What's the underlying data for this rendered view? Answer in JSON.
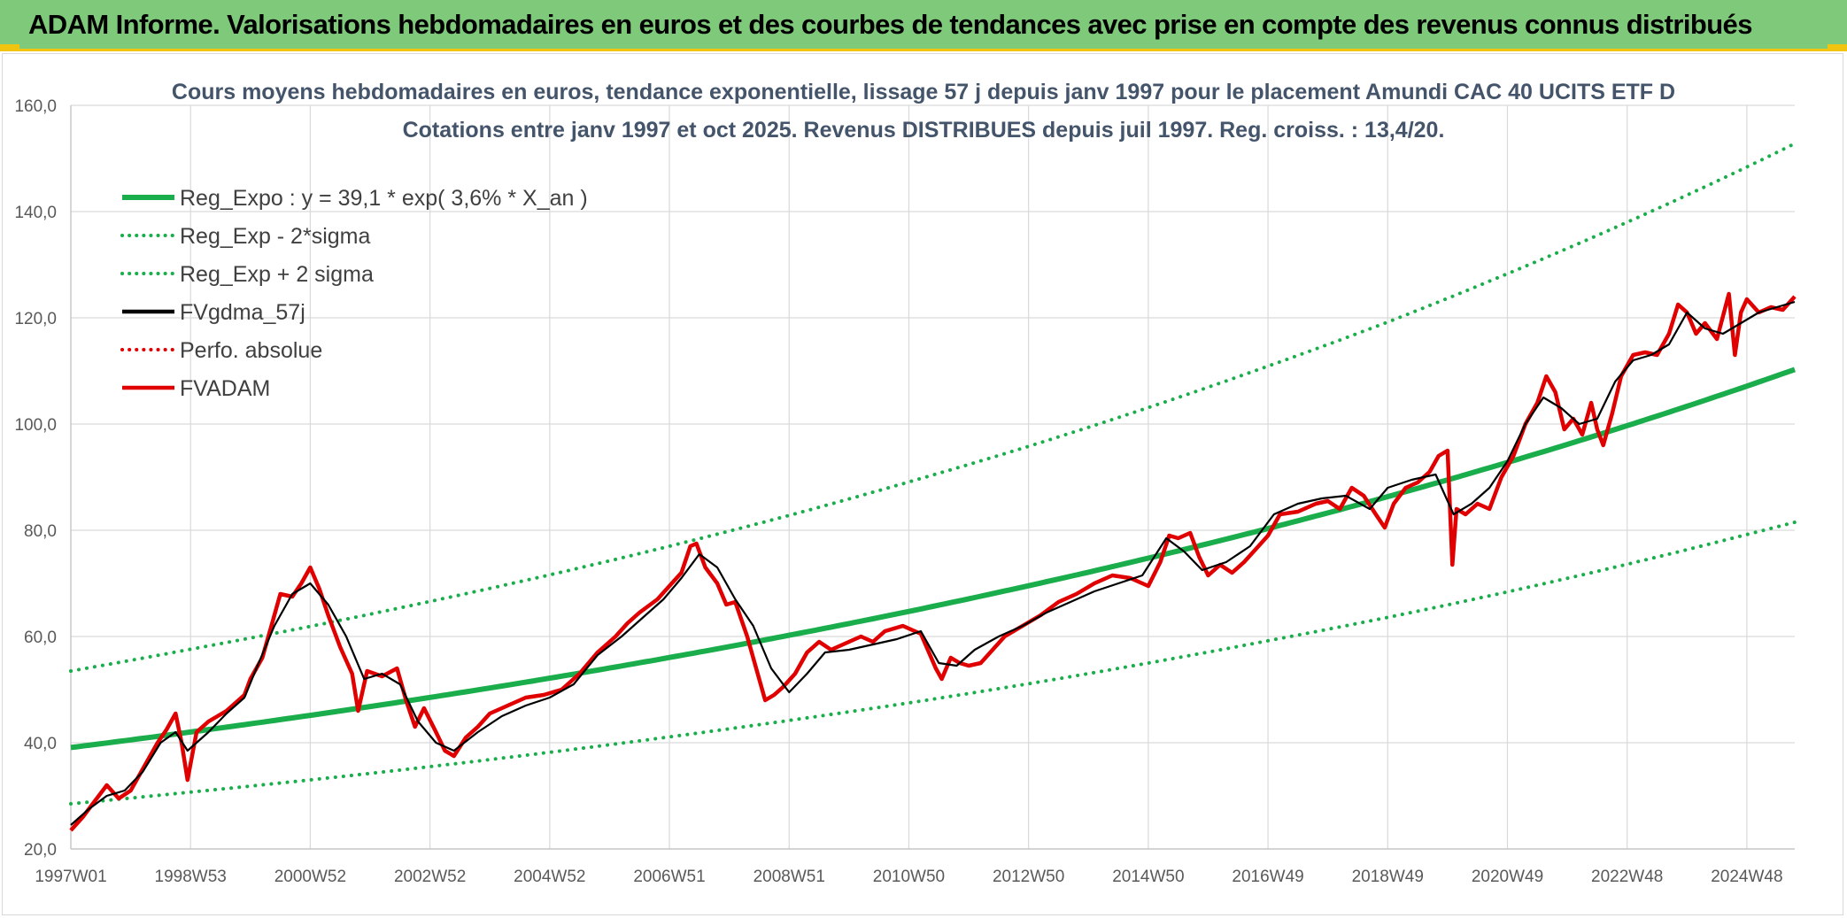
{
  "banner": {
    "title": "ADAM Informe. Valorisations hebdomadaires en euros et des courbes de tendances avec prise en compte des revenus connus distribués"
  },
  "colors": {
    "banner_bg": "#7fc97a",
    "accent_yellow": "#f1c40f",
    "trend_green": "#1aad4b",
    "smooth_black": "#000000",
    "price_red": "#e00000",
    "grid": "#d9d9d9"
  },
  "chart_data": {
    "type": "line",
    "title_line1": "Cours moyens hebdomadaires en euros, tendance exponentielle, lissage 57 j depuis janv 1997 pour le placement Amundi CAC 40 UCITS ETF D",
    "title_line2": "Cotations entre janv 1997 et oct 2025. Revenus DISTRIBUES depuis juil 1997. Reg. croiss. : 13,4/20.",
    "xlabel": "",
    "ylabel": "",
    "ylim": [
      20,
      160
    ],
    "xlim": [
      1997.0,
      2025.8
    ],
    "yticks": [
      "20,0",
      "40,0",
      "60,0",
      "80,0",
      "100,0",
      "120,0",
      "140,0",
      "160,0"
    ],
    "ytick_values": [
      20,
      40,
      60,
      80,
      100,
      120,
      140,
      160
    ],
    "xticks": [
      "1997W01",
      "1998W53",
      "2000W52",
      "2002W52",
      "2004W52",
      "2006W51",
      "2008W51",
      "2010W50",
      "2012W50",
      "2014W50",
      "2016W49",
      "2018W49",
      "2020W49",
      "2022W48",
      "2024W48"
    ],
    "xtick_values": [
      1997.0,
      1999.0,
      2001.0,
      2003.0,
      2005.0,
      2007.0,
      2009.0,
      2011.0,
      2013.0,
      2015.0,
      2017.0,
      2019.0,
      2021.0,
      2023.0,
      2025.0
    ],
    "grid": true,
    "legend_position": "top-left",
    "legend": [
      {
        "label": "Reg_Expo : y = 39,1 * exp( 3,6% *  X_an )",
        "style": "solid",
        "color": "#1aad4b"
      },
      {
        "label": "Reg_Exp - 2*sigma",
        "style": "dotted",
        "color": "#1aad4b"
      },
      {
        "label": "Reg_Exp + 2 sigma",
        "style": "dotted",
        "color": "#1aad4b"
      },
      {
        "label": "FVgdma_57j",
        "style": "solid",
        "color": "#000000"
      },
      {
        "label": "Perfo. absolue",
        "style": "dotted",
        "color": "#e00000"
      },
      {
        "label": "FVADAM",
        "style": "solid",
        "color": "#e00000"
      }
    ],
    "series": [
      {
        "name": "Reg_Expo",
        "formula": {
          "a": 39.1,
          "rate": 0.036,
          "x0": 1997.0
        },
        "x": [
          1997.0,
          1999.0,
          2001.0,
          2003.0,
          2005.0,
          2007.0,
          2009.0,
          2011.0,
          2013.0,
          2015.0,
          2017.0,
          2019.0,
          2021.0,
          2023.0,
          2025.0,
          2025.8
        ],
        "values": [
          39.1,
          42.0,
          45.3,
          48.7,
          52.4,
          56.3,
          60.6,
          65.1,
          70.1,
          75.4,
          81.1,
          87.2,
          93.8,
          100.9,
          108.5,
          111.7
        ]
      },
      {
        "name": "Reg_Exp - 2*sigma",
        "x": [
          1997.0,
          1999.0,
          2001.0,
          2003.0,
          2005.0,
          2007.0,
          2009.0,
          2011.0,
          2013.0,
          2015.0,
          2017.0,
          2019.0,
          2021.0,
          2023.0,
          2025.0,
          2025.8
        ],
        "values": [
          28.5,
          30.7,
          33.0,
          35.5,
          38.2,
          41.1,
          44.2,
          47.5,
          51.1,
          55.0,
          59.2,
          63.6,
          68.4,
          73.6,
          79.2,
          81.5
        ]
      },
      {
        "name": "Reg_Exp + 2 sigma",
        "x": [
          1997.0,
          1999.0,
          2001.0,
          2003.0,
          2005.0,
          2007.0,
          2009.0,
          2011.0,
          2013.0,
          2015.0,
          2017.0,
          2019.0,
          2021.0,
          2023.0,
          2025.0,
          2025.8
        ],
        "values": [
          53.5,
          57.6,
          61.9,
          66.6,
          71.6,
          77.0,
          82.8,
          89.1,
          95.8,
          103.1,
          110.9,
          119.2,
          128.3,
          138.0,
          148.4,
          152.8
        ]
      },
      {
        "name": "FVgdma_57j",
        "x": [
          1997.0,
          1997.3,
          1997.6,
          1997.9,
          1998.2,
          1998.5,
          1998.75,
          1998.95,
          1999.3,
          1999.6,
          1999.9,
          2000.1,
          2000.4,
          2000.7,
          2001.0,
          2001.3,
          2001.6,
          2001.9,
          2002.2,
          2002.5,
          2002.8,
          2003.1,
          2003.4,
          2003.8,
          2004.2,
          2004.6,
          2005.0,
          2005.4,
          2005.8,
          2006.2,
          2006.6,
          2006.9,
          2007.2,
          2007.5,
          2007.8,
          2008.1,
          2008.4,
          2008.7,
          2009.0,
          2009.3,
          2009.6,
          2010.0,
          2010.4,
          2010.8,
          2011.2,
          2011.5,
          2011.8,
          2012.1,
          2012.5,
          2012.9,
          2013.3,
          2013.7,
          2014.1,
          2014.5,
          2014.9,
          2015.3,
          2015.6,
          2015.9,
          2016.3,
          2016.7,
          2017.1,
          2017.5,
          2017.9,
          2018.3,
          2018.7,
          2019.0,
          2019.4,
          2019.8,
          2020.1,
          2020.4,
          2020.7,
          2021.0,
          2021.3,
          2021.6,
          2021.9,
          2022.2,
          2022.5,
          2022.8,
          2023.1,
          2023.4,
          2023.7,
          2024.0,
          2024.3,
          2024.6,
          2024.9,
          2025.2,
          2025.5,
          2025.8
        ],
        "values": [
          24.5,
          27.5,
          30.0,
          31.0,
          34.5,
          40.0,
          42.0,
          38.5,
          42.0,
          45.5,
          48.5,
          54.0,
          62.0,
          68.0,
          70.0,
          66.0,
          60.0,
          52.0,
          53.0,
          51.0,
          44.0,
          40.0,
          38.5,
          42.0,
          45.0,
          47.0,
          48.5,
          51.0,
          56.5,
          60.0,
          64.0,
          67.0,
          71.0,
          75.5,
          73.0,
          67.0,
          62.0,
          54.0,
          49.5,
          53.0,
          57.0,
          57.5,
          58.5,
          59.5,
          61.0,
          55.0,
          54.5,
          57.5,
          60.0,
          62.0,
          64.5,
          66.5,
          68.5,
          70.0,
          71.5,
          78.5,
          76.0,
          72.5,
          74.0,
          77.0,
          83.0,
          85.0,
          86.0,
          86.5,
          84.0,
          88.0,
          89.5,
          90.5,
          83.0,
          85.0,
          88.0,
          93.0,
          100.0,
          105.0,
          103.0,
          100.0,
          101.0,
          108.0,
          112.0,
          113.0,
          115.0,
          121.0,
          118.0,
          117.0,
          119.0,
          121.0,
          122.0,
          123.0
        ]
      },
      {
        "name": "FVADAM",
        "x": [
          1997.0,
          1997.2,
          1997.4,
          1997.6,
          1997.8,
          1998.0,
          1998.2,
          1998.45,
          1998.6,
          1998.75,
          1998.85,
          1998.95,
          1999.1,
          1999.3,
          1999.6,
          1999.9,
          2000.0,
          2000.2,
          2000.35,
          2000.5,
          2000.7,
          2000.85,
          2001.0,
          2001.15,
          2001.3,
          2001.5,
          2001.7,
          2001.8,
          2001.95,
          2002.2,
          2002.45,
          2002.6,
          2002.75,
          2002.9,
          2003.1,
          2003.25,
          2003.4,
          2003.6,
          2003.8,
          2004.0,
          2004.3,
          2004.6,
          2004.9,
          2005.2,
          2005.5,
          2005.8,
          2006.1,
          2006.3,
          2006.5,
          2006.8,
          2007.0,
          2007.2,
          2007.35,
          2007.45,
          2007.6,
          2007.8,
          2007.95,
          2008.1,
          2008.3,
          2008.5,
          2008.6,
          2008.75,
          2008.9,
          2009.1,
          2009.3,
          2009.5,
          2009.7,
          2010.0,
          2010.2,
          2010.4,
          2010.6,
          2010.9,
          2011.2,
          2011.45,
          2011.55,
          2011.7,
          2011.85,
          2012.0,
          2012.2,
          2012.4,
          2012.6,
          2012.9,
          2013.2,
          2013.5,
          2013.8,
          2014.1,
          2014.4,
          2014.7,
          2015.0,
          2015.2,
          2015.35,
          2015.5,
          2015.7,
          2015.85,
          2016.0,
          2016.2,
          2016.4,
          2016.6,
          2016.8,
          2017.0,
          2017.2,
          2017.5,
          2017.8,
          2018.0,
          2018.2,
          2018.4,
          2018.6,
          2018.8,
          2018.95,
          2019.1,
          2019.3,
          2019.5,
          2019.7,
          2019.85,
          2020.0,
          2020.08,
          2020.15,
          2020.3,
          2020.5,
          2020.7,
          2020.9,
          2021.1,
          2021.3,
          2021.5,
          2021.65,
          2021.8,
          2021.95,
          2022.1,
          2022.25,
          2022.4,
          2022.5,
          2022.6,
          2022.75,
          2022.9,
          2023.1,
          2023.3,
          2023.5,
          2023.7,
          2023.85,
          2024.0,
          2024.15,
          2024.3,
          2024.5,
          2024.7,
          2024.8,
          2024.9,
          2025.0,
          2025.2,
          2025.4,
          2025.6,
          2025.8
        ],
        "values": [
          23.5,
          26.0,
          29.0,
          32.0,
          29.5,
          31.0,
          35.0,
          40.0,
          42.5,
          45.5,
          40.0,
          33.0,
          42.0,
          44.0,
          46.0,
          49.0,
          52.0,
          56.0,
          62.0,
          68.0,
          67.5,
          70.0,
          73.0,
          69.0,
          64.0,
          58.0,
          53.0,
          46.0,
          53.5,
          52.5,
          54.0,
          48.0,
          43.0,
          46.5,
          42.0,
          38.5,
          37.5,
          41.0,
          43.0,
          45.5,
          47.0,
          48.5,
          49.0,
          50.0,
          53.0,
          57.0,
          60.0,
          62.5,
          64.5,
          67.0,
          69.5,
          72.0,
          77.0,
          77.5,
          73.0,
          70.0,
          66.0,
          66.5,
          60.0,
          52.0,
          48.0,
          49.0,
          50.5,
          53.0,
          57.0,
          59.0,
          57.5,
          59.0,
          60.0,
          59.0,
          61.0,
          62.0,
          60.5,
          54.0,
          52.0,
          56.0,
          55.0,
          54.5,
          55.0,
          57.5,
          60.0,
          62.0,
          64.0,
          66.5,
          68.0,
          70.0,
          71.5,
          71.0,
          69.5,
          74.0,
          79.0,
          78.5,
          79.5,
          75.0,
          71.5,
          73.5,
          72.0,
          74.0,
          76.5,
          79.0,
          83.0,
          83.5,
          85.0,
          85.5,
          84.0,
          88.0,
          86.5,
          83.0,
          80.5,
          85.0,
          88.0,
          89.0,
          91.0,
          94.0,
          95.0,
          73.5,
          84.0,
          83.0,
          85.0,
          84.0,
          90.0,
          94.0,
          100.0,
          104.0,
          109.0,
          106.0,
          99.0,
          101.0,
          98.0,
          104.0,
          99.0,
          96.0,
          102.0,
          109.0,
          113.0,
          113.5,
          113.0,
          117.0,
          122.5,
          121.0,
          117.0,
          119.0,
          116.0,
          124.5,
          113.0,
          121.0,
          123.5,
          121.0,
          122.0,
          121.5,
          124.0
        ]
      }
    ]
  }
}
